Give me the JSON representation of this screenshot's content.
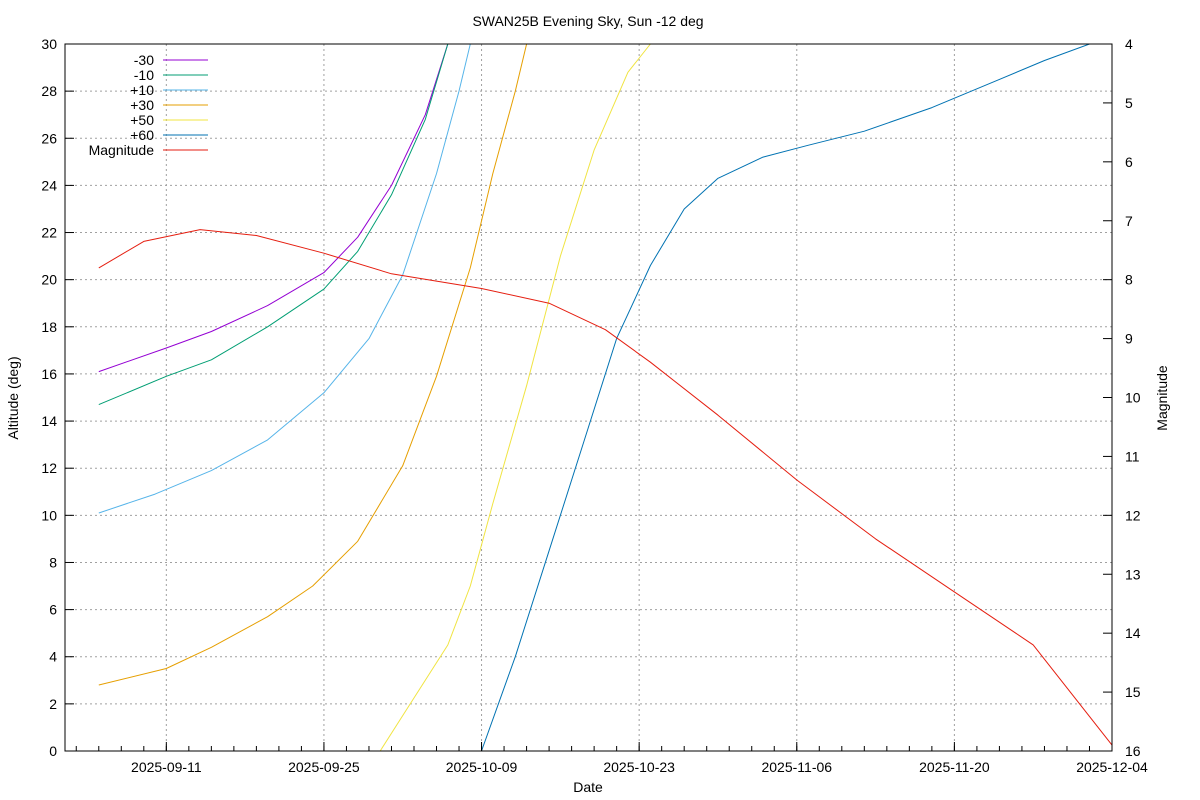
{
  "chart_data": {
    "type": "line",
    "title": "SWAN25B Evening Sky, Sun -12 deg",
    "xlabel": "Date",
    "ylabel": "Altitude (deg)",
    "y2label": "Magnitude",
    "x_range": [
      "2025-09-02",
      "2025-12-04"
    ],
    "x_ticks": [
      "2025-09-11",
      "2025-09-25",
      "2025-10-09",
      "2025-10-23",
      "2025-11-06",
      "2025-11-20",
      "2025-12-04"
    ],
    "ylim": [
      0,
      30
    ],
    "y_ticks": [
      0,
      2,
      4,
      6,
      8,
      10,
      12,
      14,
      16,
      18,
      20,
      22,
      24,
      26,
      28,
      30
    ],
    "y2lim": [
      16,
      4
    ],
    "y2_ticks": [
      4,
      5,
      6,
      7,
      8,
      9,
      10,
      11,
      12,
      13,
      14,
      15,
      16
    ],
    "grid": true,
    "legend_position": "top-left",
    "series": [
      {
        "name": "-30",
        "color": "#9400d3",
        "axis": "left",
        "points": [
          [
            "2025-09-05",
            16.1
          ],
          [
            "2025-09-11",
            17.1
          ],
          [
            "2025-09-15",
            17.8
          ],
          [
            "2025-09-20",
            18.9
          ],
          [
            "2025-09-25",
            20.3
          ],
          [
            "2025-09-28",
            21.8
          ],
          [
            "2025-10-01",
            24.0
          ],
          [
            "2025-10-04",
            27.0
          ],
          [
            "2025-10-06",
            30.0
          ]
        ]
      },
      {
        "name": "-10",
        "color": "#009e73",
        "axis": "left",
        "points": [
          [
            "2025-09-05",
            14.7
          ],
          [
            "2025-09-11",
            15.9
          ],
          [
            "2025-09-15",
            16.6
          ],
          [
            "2025-09-20",
            18.0
          ],
          [
            "2025-09-25",
            19.6
          ],
          [
            "2025-09-28",
            21.2
          ],
          [
            "2025-10-01",
            23.6
          ],
          [
            "2025-10-04",
            26.8
          ],
          [
            "2025-10-06",
            30.0
          ]
        ]
      },
      {
        "name": "+10",
        "color": "#56b4e9",
        "axis": "left",
        "points": [
          [
            "2025-09-05",
            10.1
          ],
          [
            "2025-09-10",
            10.9
          ],
          [
            "2025-09-15",
            11.9
          ],
          [
            "2025-09-20",
            13.2
          ],
          [
            "2025-09-25",
            15.2
          ],
          [
            "2025-09-29",
            17.5
          ],
          [
            "2025-10-02",
            20.2
          ],
          [
            "2025-10-05",
            24.5
          ],
          [
            "2025-10-07",
            28.0
          ],
          [
            "2025-10-08",
            30.0
          ]
        ]
      },
      {
        "name": "+30",
        "color": "#e69f00",
        "axis": "left",
        "points": [
          [
            "2025-09-05",
            2.8
          ],
          [
            "2025-09-11",
            3.5
          ],
          [
            "2025-09-15",
            4.4
          ],
          [
            "2025-09-20",
            5.7
          ],
          [
            "2025-09-24",
            7.0
          ],
          [
            "2025-09-28",
            8.9
          ],
          [
            "2025-10-02",
            12.1
          ],
          [
            "2025-10-05",
            15.9
          ],
          [
            "2025-10-08",
            20.5
          ],
          [
            "2025-10-10",
            24.5
          ],
          [
            "2025-10-12",
            28.0
          ],
          [
            "2025-10-13",
            30.0
          ]
        ]
      },
      {
        "name": "+50",
        "color": "#f0e442",
        "axis": "left",
        "points": [
          [
            "2025-09-30",
            0.0
          ],
          [
            "2025-10-02",
            1.5
          ],
          [
            "2025-10-06",
            4.5
          ],
          [
            "2025-10-08",
            7.0
          ],
          [
            "2025-10-10",
            10.5
          ],
          [
            "2025-10-13",
            15.5
          ],
          [
            "2025-10-16",
            21.0
          ],
          [
            "2025-10-19",
            25.5
          ],
          [
            "2025-10-22",
            28.8
          ],
          [
            "2025-10-24",
            30.0
          ]
        ]
      },
      {
        "name": "+60",
        "color": "#0072b2",
        "axis": "left",
        "points": [
          [
            "2025-10-09",
            0.0
          ],
          [
            "2025-10-12",
            4.0
          ],
          [
            "2025-10-15",
            8.5
          ],
          [
            "2025-10-18",
            13.0
          ],
          [
            "2025-10-21",
            17.5
          ],
          [
            "2025-10-24",
            20.6
          ],
          [
            "2025-10-27",
            23.0
          ],
          [
            "2025-10-30",
            24.3
          ],
          [
            "2025-11-03",
            25.2
          ],
          [
            "2025-11-07",
            25.7
          ],
          [
            "2025-11-12",
            26.3
          ],
          [
            "2025-11-18",
            27.3
          ],
          [
            "2025-11-24",
            28.5
          ],
          [
            "2025-11-28",
            29.3
          ],
          [
            "2025-12-02",
            30.0
          ]
        ]
      },
      {
        "name": "Magnitude",
        "color": "#e51e10",
        "axis": "right",
        "points": [
          [
            "2025-09-05",
            7.8
          ],
          [
            "2025-09-09",
            7.35
          ],
          [
            "2025-09-14",
            7.15
          ],
          [
            "2025-09-19",
            7.25
          ],
          [
            "2025-09-25",
            7.55
          ],
          [
            "2025-10-01",
            7.9
          ],
          [
            "2025-10-09",
            8.15
          ],
          [
            "2025-10-15",
            8.4
          ],
          [
            "2025-10-20",
            8.85
          ],
          [
            "2025-10-24",
            9.4
          ],
          [
            "2025-10-30",
            10.3
          ],
          [
            "2025-11-06",
            11.4
          ],
          [
            "2025-11-13",
            12.4
          ],
          [
            "2025-11-20",
            13.3
          ],
          [
            "2025-11-27",
            14.2
          ],
          [
            "2025-12-04",
            15.9
          ]
        ]
      }
    ]
  }
}
